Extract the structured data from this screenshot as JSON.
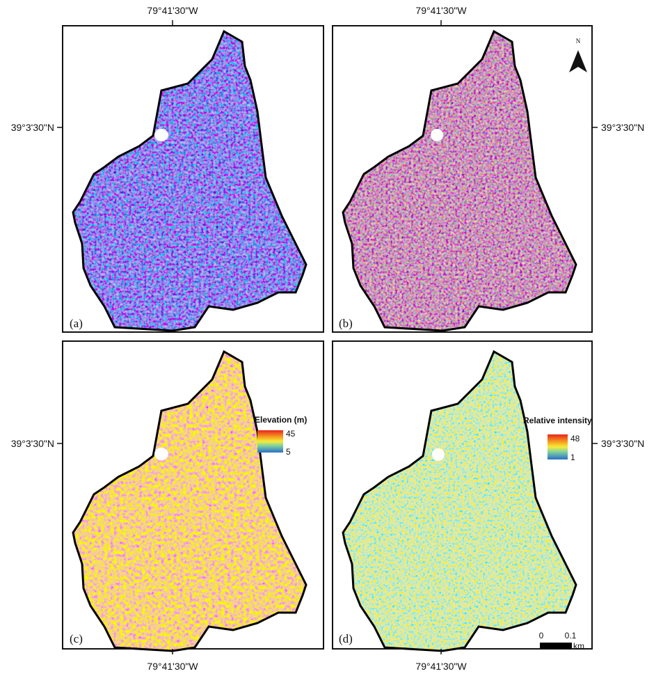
{
  "panels": [
    {
      "label": "(a)",
      "longitude": "79°41'30\"W",
      "latitude": "39°3'30\"N"
    },
    {
      "label": "(b)",
      "longitude": "79°41'30\"W",
      "latitude": "39°3'30\"N",
      "north_arrow": "N"
    },
    {
      "label": "(c)",
      "longitude": "79°41'30\"W",
      "latitude": "39°3'30\"N",
      "legend": {
        "title": "Elevation (m)",
        "max": 45,
        "min": 5
      }
    },
    {
      "label": "(d)",
      "longitude": "79°41'30\"W",
      "latitude": "39°3'30\"N",
      "legend": {
        "title": "Relative intensity",
        "max": 48,
        "min": 1
      },
      "scale_bar": {
        "ticks": [
          0,
          0.1
        ],
        "unit": "km"
      }
    }
  ]
}
